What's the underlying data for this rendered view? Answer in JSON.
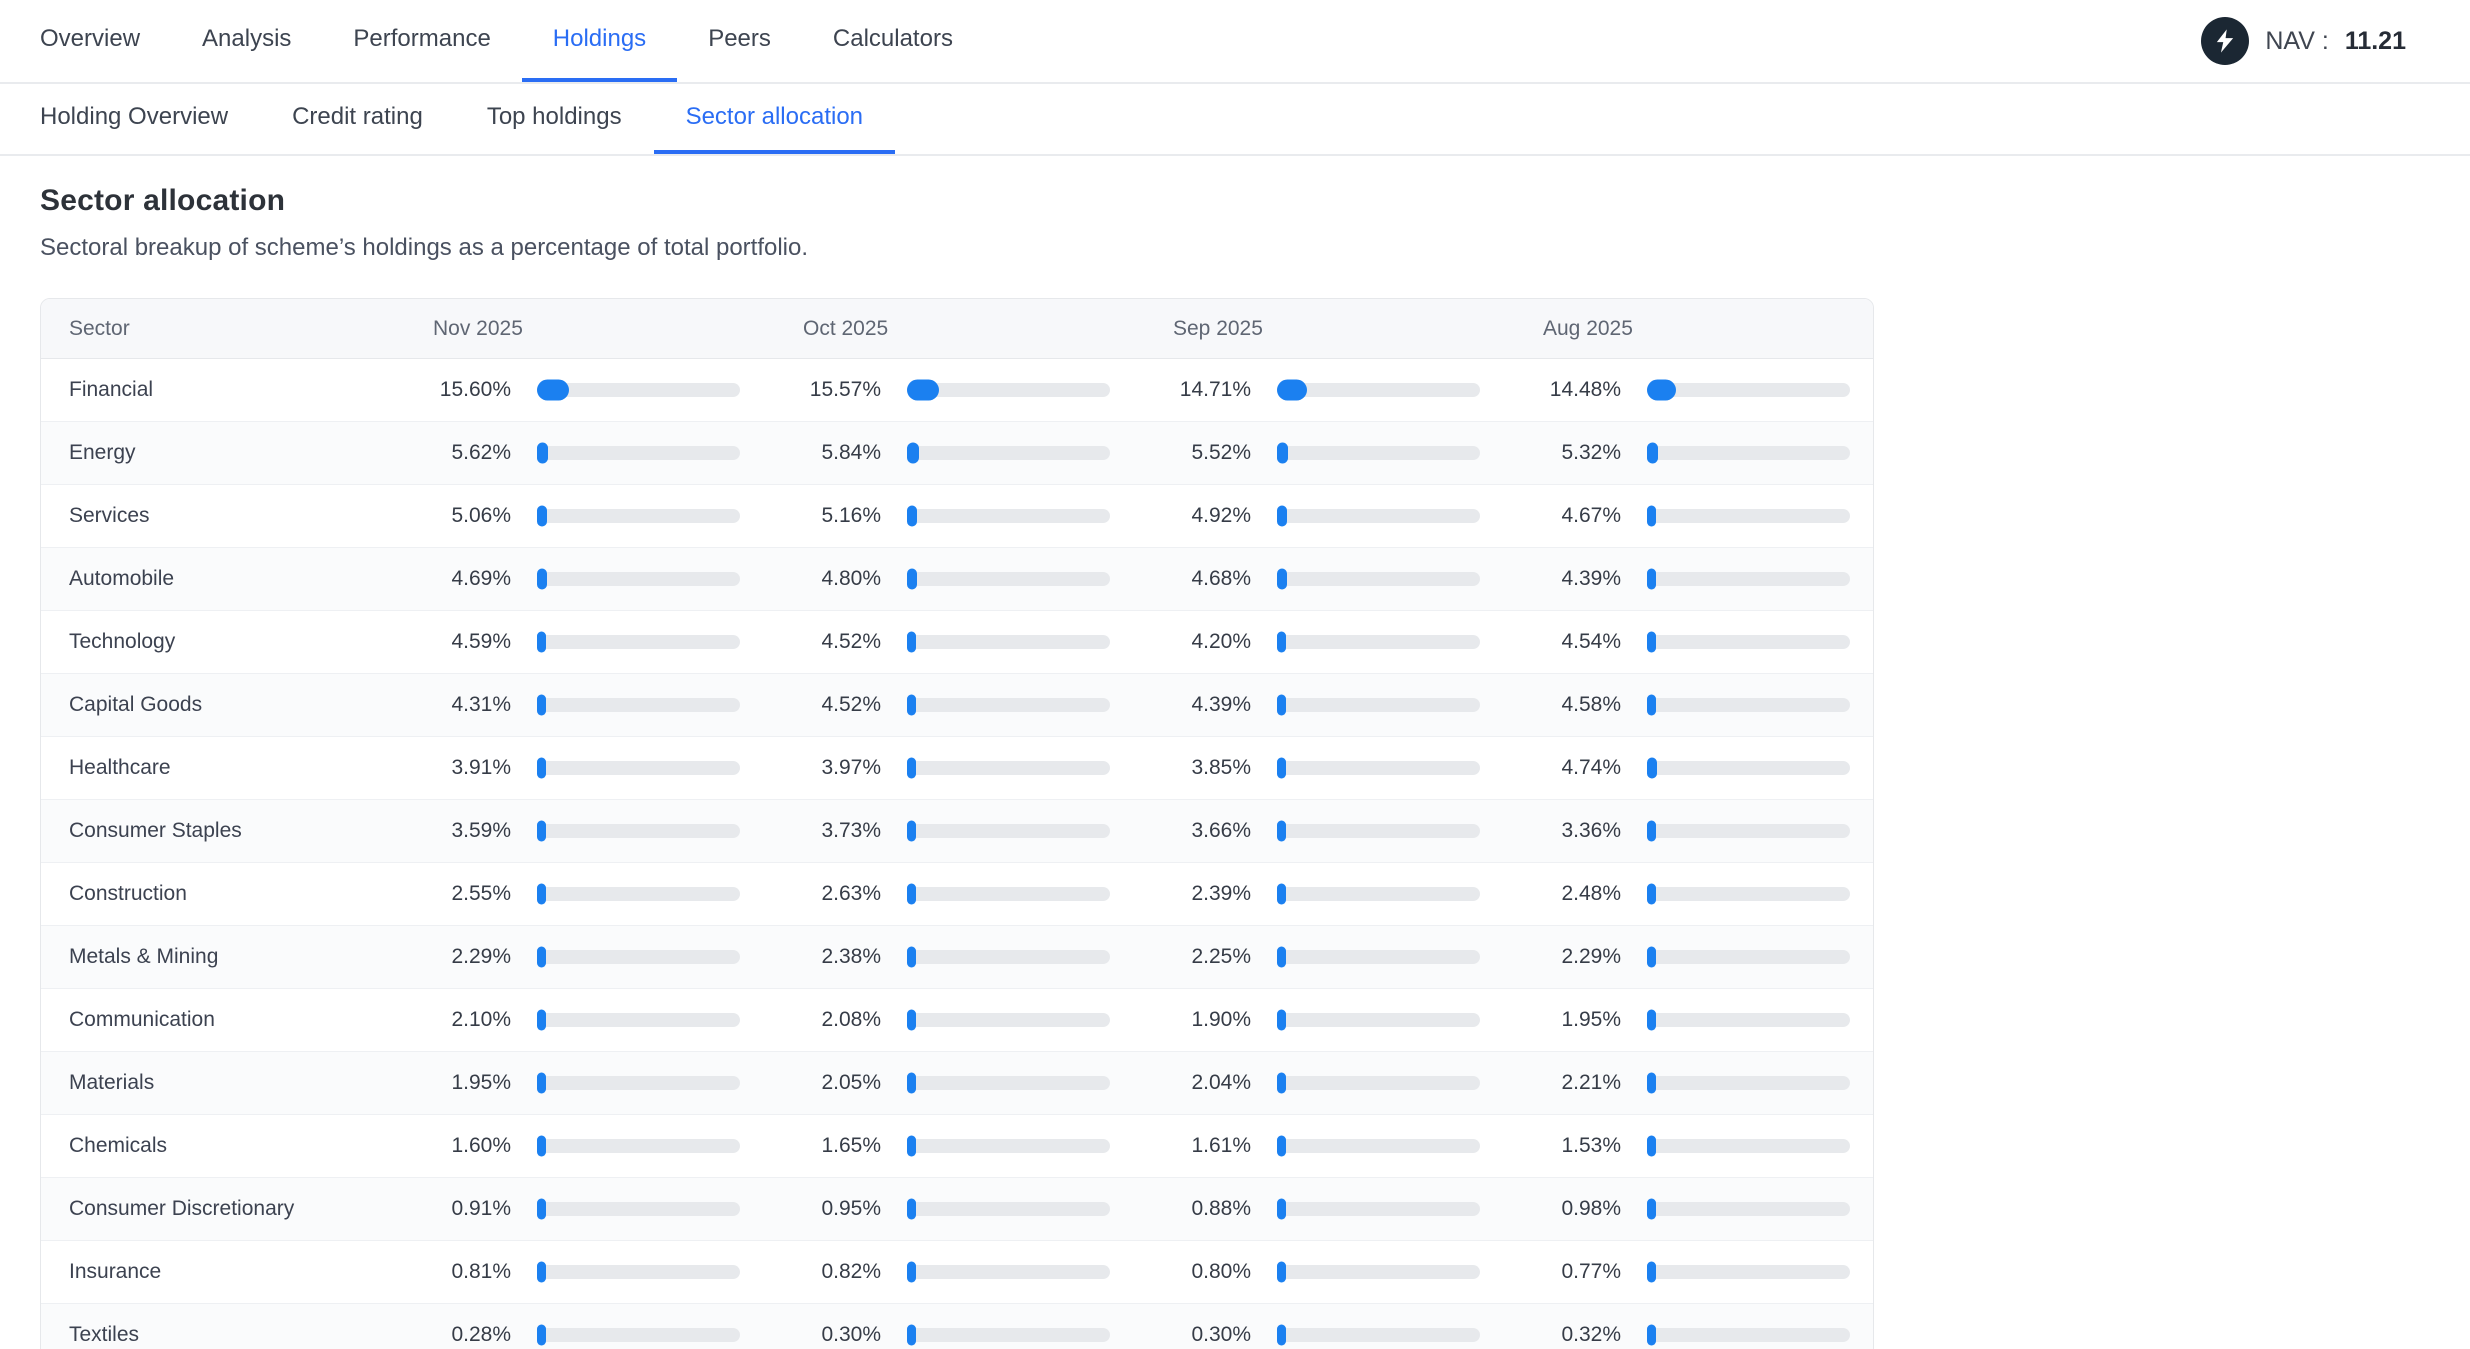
{
  "colors": {
    "accent": "#2a6df4",
    "bar_fill": "#1b80f0",
    "bar_track": "#e7e9ec",
    "logo_bg": "#1b2733"
  },
  "nav": {
    "items": [
      {
        "label": "Overview",
        "active": false
      },
      {
        "label": "Analysis",
        "active": false
      },
      {
        "label": "Performance",
        "active": false
      },
      {
        "label": "Holdings",
        "active": true
      },
      {
        "label": "Peers",
        "active": false
      },
      {
        "label": "Calculators",
        "active": false
      }
    ],
    "nav_label": "NAV :",
    "nav_value": "11.21"
  },
  "subnav": {
    "items": [
      {
        "label": "Holding Overview",
        "active": false
      },
      {
        "label": "Credit rating",
        "active": false
      },
      {
        "label": "Top holdings",
        "active": false
      },
      {
        "label": "Sector allocation",
        "active": true
      }
    ]
  },
  "page": {
    "title": "Sector allocation",
    "subtitle": "Sectoral breakup of scheme’s holdings as a percentage of total portfolio."
  },
  "chart_data": {
    "type": "table",
    "columns": [
      "Sector",
      "Nov 2025",
      "Oct 2025",
      "Sep 2025",
      "Aug 2025"
    ],
    "bar_scale_max_percent": 100,
    "rows": [
      {
        "sector": "Financial",
        "values": [
          "15.60%",
          "15.57%",
          "14.71%",
          "14.48%"
        ]
      },
      {
        "sector": "Energy",
        "values": [
          "5.62%",
          "5.84%",
          "5.52%",
          "5.32%"
        ]
      },
      {
        "sector": "Services",
        "values": [
          "5.06%",
          "5.16%",
          "4.92%",
          "4.67%"
        ]
      },
      {
        "sector": "Automobile",
        "values": [
          "4.69%",
          "4.80%",
          "4.68%",
          "4.39%"
        ]
      },
      {
        "sector": "Technology",
        "values": [
          "4.59%",
          "4.52%",
          "4.20%",
          "4.54%"
        ]
      },
      {
        "sector": "Capital Goods",
        "values": [
          "4.31%",
          "4.52%",
          "4.39%",
          "4.58%"
        ]
      },
      {
        "sector": "Healthcare",
        "values": [
          "3.91%",
          "3.97%",
          "3.85%",
          "4.74%"
        ]
      },
      {
        "sector": "Consumer Staples",
        "values": [
          "3.59%",
          "3.73%",
          "3.66%",
          "3.36%"
        ]
      },
      {
        "sector": "Construction",
        "values": [
          "2.55%",
          "2.63%",
          "2.39%",
          "2.48%"
        ]
      },
      {
        "sector": "Metals & Mining",
        "values": [
          "2.29%",
          "2.38%",
          "2.25%",
          "2.29%"
        ]
      },
      {
        "sector": "Communication",
        "values": [
          "2.10%",
          "2.08%",
          "1.90%",
          "1.95%"
        ]
      },
      {
        "sector": "Materials",
        "values": [
          "1.95%",
          "2.05%",
          "2.04%",
          "2.21%"
        ]
      },
      {
        "sector": "Chemicals",
        "values": [
          "1.60%",
          "1.65%",
          "1.61%",
          "1.53%"
        ]
      },
      {
        "sector": "Consumer Discretionary",
        "values": [
          "0.91%",
          "0.95%",
          "0.88%",
          "0.98%"
        ]
      },
      {
        "sector": "Insurance",
        "values": [
          "0.81%",
          "0.82%",
          "0.80%",
          "0.77%"
        ]
      },
      {
        "sector": "Textiles",
        "values": [
          "0.28%",
          "0.30%",
          "0.30%",
          "0.32%"
        ]
      }
    ]
  }
}
